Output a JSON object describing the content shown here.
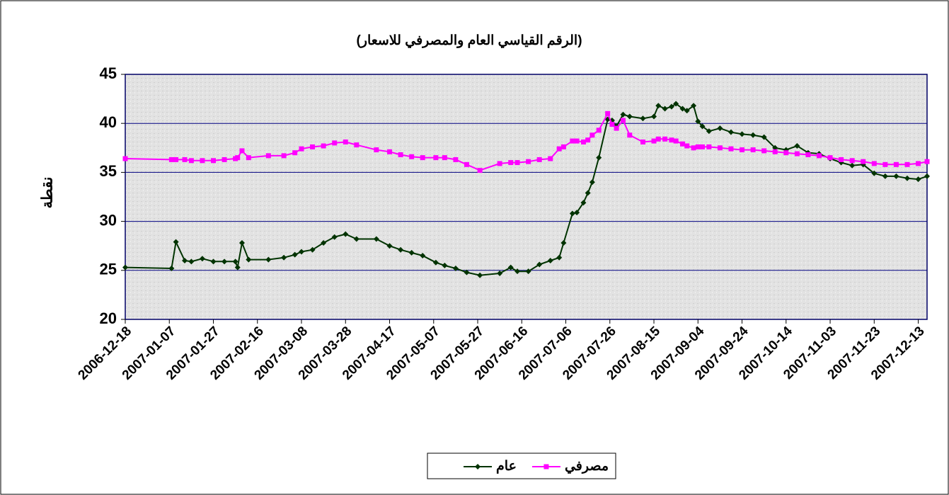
{
  "chart_data": {
    "type": "line",
    "title": "(الرقم القياسي العام والمصرفي للاسعار)",
    "y_label": "نقطة",
    "x": [
      "2006-12-18",
      "2007-01-08",
      "2007-01-10",
      "2007-01-14",
      "2007-01-17",
      "2007-01-22",
      "2007-01-27",
      "2007-02-01",
      "2007-02-06",
      "2007-02-07",
      "2007-02-09",
      "2007-02-12",
      "2007-02-21",
      "2007-02-28",
      "2007-03-05",
      "2007-03-08",
      "2007-03-13",
      "2007-03-18",
      "2007-03-23",
      "2007-03-28",
      "2007-04-02",
      "2007-04-11",
      "2007-04-17",
      "2007-04-22",
      "2007-04-27",
      "2007-05-02",
      "2007-05-08",
      "2007-05-12",
      "2007-05-17",
      "2007-05-22",
      "2007-05-28",
      "2007-06-06",
      "2007-06-11",
      "2007-06-14",
      "2007-06-19",
      "2007-06-24",
      "2007-06-29",
      "2007-07-03",
      "2007-07-05",
      "2007-07-09",
      "2007-07-11",
      "2007-07-14",
      "2007-07-16",
      "2007-07-18",
      "2007-07-21",
      "2007-07-25",
      "2007-07-27",
      "2007-07-29",
      "2007-08-01",
      "2007-08-04",
      "2007-08-10",
      "2007-08-15",
      "2007-08-17",
      "2007-08-20",
      "2007-08-23",
      "2007-08-25",
      "2007-08-28",
      "2007-08-30",
      "2007-09-02",
      "2007-09-04",
      "2007-09-06",
      "2007-09-09",
      "2007-09-14",
      "2007-09-19",
      "2007-09-24",
      "2007-09-29",
      "2007-10-04",
      "2007-10-09",
      "2007-10-14",
      "2007-10-19",
      "2007-10-24",
      "2007-10-29",
      "2007-11-03",
      "2007-11-08",
      "2007-11-13",
      "2007-11-18",
      "2007-11-23",
      "2007-11-28",
      "2007-12-03",
      "2007-12-08",
      "2007-12-13",
      "2007-12-17"
    ],
    "series": [
      {
        "name": "عام",
        "color": "#003300",
        "marker": "diamond",
        "values": [
          25.3,
          25.2,
          27.9,
          26.0,
          25.9,
          26.2,
          25.9,
          25.9,
          25.9,
          25.3,
          27.8,
          26.1,
          26.1,
          26.3,
          26.6,
          26.9,
          27.1,
          27.8,
          28.4,
          28.7,
          28.2,
          28.2,
          27.5,
          27.1,
          26.8,
          26.5,
          25.8,
          25.5,
          25.2,
          24.8,
          24.5,
          24.7,
          25.3,
          24.9,
          24.9,
          25.6,
          26.0,
          26.3,
          27.8,
          30.8,
          30.9,
          31.9,
          32.9,
          34.0,
          36.5,
          40.4,
          40.3,
          39.7,
          40.9,
          40.7,
          40.5,
          40.7,
          41.8,
          41.5,
          41.7,
          42.0,
          41.5,
          41.3,
          41.8,
          40.2,
          39.7,
          39.2,
          39.5,
          39.1,
          38.9,
          38.8,
          38.6,
          37.5,
          37.3,
          37.7,
          37.0,
          36.9,
          36.4,
          36.0,
          35.7,
          35.8,
          34.9,
          34.6,
          34.6,
          34.4,
          34.3,
          34.6
        ]
      },
      {
        "name": "مصرفي",
        "color": "#ff00ff",
        "marker": "square",
        "values": [
          36.4,
          36.3,
          36.3,
          36.3,
          36.2,
          36.2,
          36.2,
          36.3,
          36.4,
          36.5,
          37.2,
          36.5,
          36.7,
          36.7,
          37.0,
          37.4,
          37.6,
          37.7,
          38.0,
          38.1,
          37.8,
          37.3,
          37.1,
          36.8,
          36.6,
          36.5,
          36.5,
          36.5,
          36.3,
          35.8,
          35.2,
          35.9,
          36.0,
          36.0,
          36.1,
          36.3,
          36.4,
          37.4,
          37.6,
          38.2,
          38.2,
          38.1,
          38.3,
          38.8,
          39.3,
          41.0,
          39.9,
          39.5,
          40.3,
          38.8,
          38.1,
          38.2,
          38.4,
          38.4,
          38.3,
          38.2,
          37.9,
          37.7,
          37.5,
          37.6,
          37.6,
          37.6,
          37.5,
          37.4,
          37.3,
          37.3,
          37.2,
          37.1,
          37.0,
          36.9,
          36.8,
          36.7,
          36.5,
          36.3,
          36.2,
          36.1,
          35.9,
          35.8,
          35.8,
          35.8,
          35.9,
          36.1
        ]
      }
    ],
    "xlim": [
      "2006-12-18",
      "2007-12-17"
    ],
    "xticks": [
      "2006-12-18",
      "2007-01-07",
      "2007-01-27",
      "2007-02-16",
      "2007-03-08",
      "2007-03-28",
      "2007-04-17",
      "2007-05-07",
      "2007-05-27",
      "2007-06-16",
      "2007-07-06",
      "2007-07-26",
      "2007-08-15",
      "2007-09-04",
      "2007-09-24",
      "2007-10-14",
      "2007-11-03",
      "2007-11-23",
      "2007-12-13"
    ],
    "ylim": [
      20,
      45
    ],
    "yticks": [
      20,
      25,
      30,
      35,
      40,
      45
    ],
    "grid": true,
    "legend": "bottom"
  }
}
